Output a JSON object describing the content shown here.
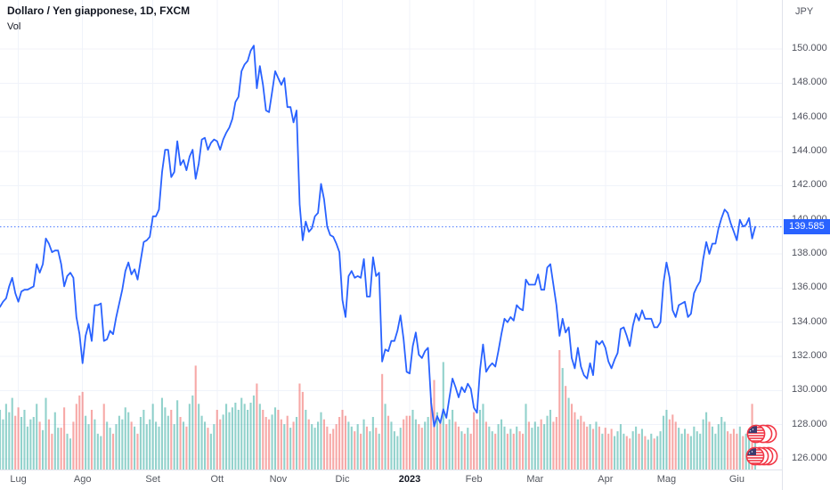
{
  "header": {
    "title": "Dollaro / Yen giapponese, 1D, FXCM",
    "indicator_label": "Vol"
  },
  "price_axis": {
    "currency_label": "JPY",
    "ticks": [
      {
        "label": "150.000",
        "value": 150
      },
      {
        "label": "148.000",
        "value": 148
      },
      {
        "label": "146.000",
        "value": 146
      },
      {
        "label": "144.000",
        "value": 144
      },
      {
        "label": "142.000",
        "value": 142
      },
      {
        "label": "140.000",
        "value": 140
      },
      {
        "label": "138.000",
        "value": 138
      },
      {
        "label": "136.000",
        "value": 136
      },
      {
        "label": "134.000",
        "value": 134
      },
      {
        "label": "132.000",
        "value": 132
      },
      {
        "label": "130.000",
        "value": 130
      },
      {
        "label": "128.000",
        "value": 128
      },
      {
        "label": "126.000",
        "value": 126
      }
    ],
    "current_price_label": "139.585"
  },
  "time_axis": {
    "labels": [
      {
        "label": "Lug",
        "index": 6
      },
      {
        "label": "Ago",
        "index": 27
      },
      {
        "label": "Set",
        "index": 50
      },
      {
        "label": "Ott",
        "index": 71
      },
      {
        "label": "Nov",
        "index": 91
      },
      {
        "label": "Dic",
        "index": 112
      },
      {
        "label": "2023",
        "index": 134,
        "year": true
      },
      {
        "label": "Feb",
        "index": 155
      },
      {
        "label": "Mar",
        "index": 175
      },
      {
        "label": "Apr",
        "index": 198
      },
      {
        "label": "Mag",
        "index": 218
      },
      {
        "label": "Giu",
        "index": 241
      }
    ]
  },
  "colors": {
    "line": "#2962FF",
    "badge_bg": "#2962FF",
    "volume_up": "rgba(38,166,154,0.5)",
    "volume_down": "rgba(239,83,80,0.5)",
    "grid": "#F0F3FA",
    "axis_border": "#E0E3EB",
    "flag_ring": "#F23645",
    "flag_canton": "#3C3B6E"
  },
  "chart_data": {
    "type": "line",
    "title": "Dollaro / Yen giapponese, 1D, FXCM",
    "ylabel": "JPY",
    "timeframe": "1D",
    "grid": true,
    "y_axis": {
      "min_tick": 126,
      "max_tick": 150,
      "tick_step": 2
    },
    "last_price": 139.585,
    "prices": [
      134.9,
      135.2,
      135.4,
      136.1,
      136.6,
      135.7,
      135.2,
      135.8,
      135.9,
      135.9,
      136.0,
      136.1,
      137.4,
      136.9,
      137.4,
      138.9,
      138.6,
      138.1,
      138.2,
      138.2,
      137.4,
      136.1,
      136.7,
      136.9,
      136.6,
      134.3,
      133.3,
      131.6,
      133.2,
      133.9,
      132.9,
      135.0,
      135.0,
      135.1,
      132.9,
      133.0,
      133.5,
      133.3,
      134.3,
      135.1,
      135.9,
      137.0,
      137.5,
      136.8,
      137.1,
      136.5,
      137.6,
      138.7,
      138.8,
      139.0,
      140.2,
      140.2,
      140.6,
      142.8,
      144.1,
      144.1,
      142.5,
      142.8,
      144.6,
      143.2,
      143.5,
      142.9,
      143.7,
      144.1,
      142.4,
      143.3,
      144.7,
      144.8,
      144.1,
      144.5,
      144.7,
      144.6,
      144.1,
      144.7,
      145.1,
      145.4,
      145.9,
      146.9,
      147.2,
      148.7,
      149.1,
      149.3,
      149.9,
      150.2,
      147.7,
      149.0,
      147.9,
      146.4,
      146.3,
      147.5,
      148.7,
      148.3,
      147.9,
      148.3,
      146.6,
      146.6,
      145.7,
      146.4,
      140.9,
      138.8,
      139.9,
      139.3,
      139.5,
      140.2,
      140.4,
      142.1,
      141.2,
      139.6,
      139.1,
      139.0,
      138.6,
      138.1,
      135.3,
      134.3,
      136.7,
      137.0,
      136.6,
      136.7,
      136.6,
      137.7,
      135.5,
      135.5,
      137.8,
      136.7,
      136.9,
      131.7,
      132.4,
      132.3,
      132.9,
      132.9,
      133.5,
      134.4,
      133.0,
      131.1,
      131.0,
      132.6,
      133.4,
      132.1,
      131.9,
      132.3,
      132.5,
      129.3,
      127.9,
      128.5,
      128.1,
      128.9,
      128.4,
      129.6,
      130.7,
      130.2,
      129.6,
      130.2,
      129.9,
      130.4,
      130.1,
      129.0,
      128.7,
      131.2,
      132.7,
      131.1,
      131.4,
      131.6,
      131.4,
      132.3,
      133.3,
      134.2,
      134.0,
      134.3,
      134.1,
      135.0,
      134.8,
      134.7,
      136.5,
      136.2,
      136.2,
      136.2,
      136.8,
      135.9,
      135.9,
      137.2,
      137.4,
      136.2,
      135.0,
      133.2,
      134.2,
      133.4,
      133.7,
      131.9,
      131.3,
      132.5,
      131.4,
      130.9,
      130.7,
      131.6,
      130.9,
      132.9,
      132.7,
      132.9,
      132.5,
      131.7,
      131.3,
      131.8,
      132.2,
      133.6,
      133.7,
      133.2,
      132.6,
      133.8,
      134.5,
      134.1,
      134.7,
      134.2,
      134.2,
      134.2,
      133.7,
      133.7,
      134.0,
      136.3,
      137.5,
      136.6,
      134.7,
      134.3,
      135.0,
      135.1,
      135.2,
      134.3,
      134.5,
      135.7,
      136.1,
      136.4,
      137.7,
      138.7,
      138.0,
      138.6,
      138.6,
      139.5,
      140.1,
      140.6,
      140.4,
      139.8,
      139.3,
      138.8,
      140.0,
      139.6,
      139.7,
      140.1,
      138.9,
      139.585
    ],
    "volumes": [
      0.5,
      0.42,
      0.55,
      0.48,
      0.6,
      0.45,
      0.52,
      0.44,
      0.5,
      0.36,
      0.42,
      0.44,
      0.55,
      0.4,
      0.33,
      0.6,
      0.42,
      0.3,
      0.48,
      0.35,
      0.35,
      0.52,
      0.3,
      0.26,
      0.4,
      0.55,
      0.62,
      0.65,
      0.45,
      0.38,
      0.5,
      0.42,
      0.3,
      0.28,
      0.55,
      0.4,
      0.35,
      0.3,
      0.38,
      0.45,
      0.42,
      0.52,
      0.48,
      0.4,
      0.36,
      0.3,
      0.44,
      0.5,
      0.38,
      0.42,
      0.55,
      0.4,
      0.36,
      0.6,
      0.52,
      0.45,
      0.5,
      0.38,
      0.58,
      0.44,
      0.4,
      0.36,
      0.55,
      0.62,
      0.87,
      0.55,
      0.45,
      0.4,
      0.35,
      0.3,
      0.38,
      0.5,
      0.42,
      0.46,
      0.55,
      0.48,
      0.52,
      0.56,
      0.5,
      0.6,
      0.55,
      0.5,
      0.56,
      0.62,
      0.72,
      0.55,
      0.5,
      0.44,
      0.42,
      0.46,
      0.52,
      0.5,
      0.42,
      0.38,
      0.45,
      0.35,
      0.4,
      0.44,
      0.72,
      0.65,
      0.5,
      0.42,
      0.38,
      0.35,
      0.4,
      0.48,
      0.42,
      0.36,
      0.3,
      0.34,
      0.38,
      0.44,
      0.5,
      0.45,
      0.4,
      0.36,
      0.32,
      0.38,
      0.3,
      0.42,
      0.36,
      0.32,
      0.44,
      0.35,
      0.3,
      0.8,
      0.55,
      0.45,
      0.4,
      0.32,
      0.28,
      0.35,
      0.42,
      0.45,
      0.45,
      0.5,
      0.42,
      0.38,
      0.35,
      0.4,
      0.44,
      0.6,
      0.75,
      0.48,
      0.4,
      0.9,
      0.38,
      0.42,
      0.5,
      0.4,
      0.36,
      0.32,
      0.3,
      0.35,
      0.3,
      0.48,
      0.42,
      0.5,
      0.55,
      0.4,
      0.36,
      0.32,
      0.3,
      0.38,
      0.42,
      0.36,
      0.3,
      0.34,
      0.3,
      0.36,
      0.32,
      0.3,
      0.55,
      0.4,
      0.35,
      0.4,
      0.36,
      0.42,
      0.38,
      0.45,
      0.5,
      0.4,
      0.44,
      1.0,
      0.85,
      0.7,
      0.6,
      0.55,
      0.48,
      0.42,
      0.45,
      0.4,
      0.36,
      0.38,
      0.34,
      0.4,
      0.36,
      0.3,
      0.35,
      0.3,
      0.34,
      0.28,
      0.32,
      0.38,
      0.3,
      0.28,
      0.26,
      0.32,
      0.36,
      0.3,
      0.34,
      0.28,
      0.25,
      0.3,
      0.26,
      0.28,
      0.32,
      0.45,
      0.5,
      0.42,
      0.46,
      0.4,
      0.35,
      0.3,
      0.34,
      0.3,
      0.28,
      0.36,
      0.32,
      0.3,
      0.42,
      0.48,
      0.4,
      0.36,
      0.3,
      0.38,
      0.44,
      0.4,
      0.32,
      0.3,
      0.34,
      0.3,
      0.36,
      0.28,
      0.3,
      0.34,
      0.55,
      0.3
    ]
  }
}
